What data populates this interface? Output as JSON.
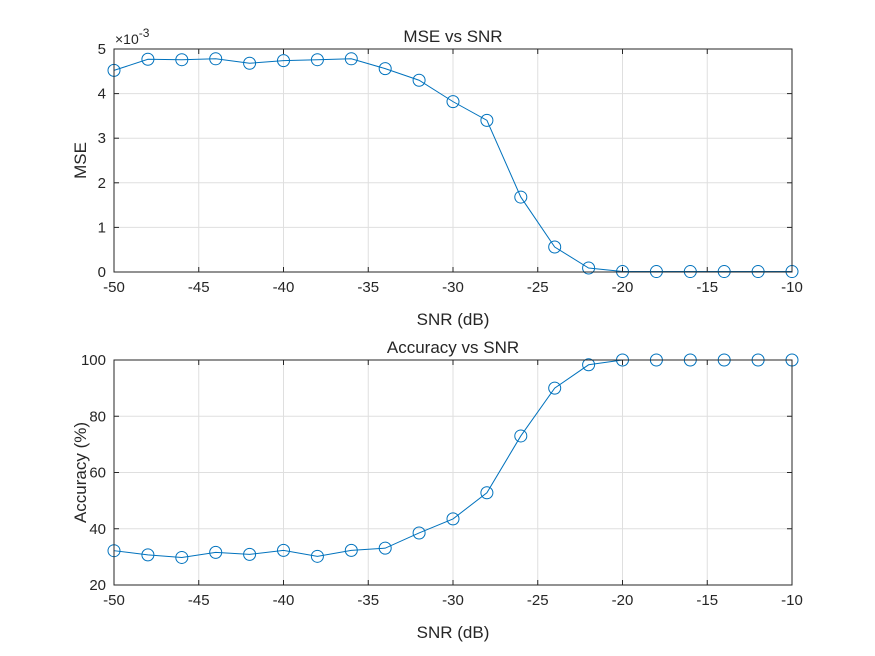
{
  "chart_data": [
    {
      "type": "line",
      "title": "MSE vs SNR",
      "xlabel": "SNR (dB)",
      "ylabel": "MSE",
      "exponent_label": "×10",
      "exponent_power": "-3",
      "xlim": [
        -50,
        -10
      ],
      "ylim": [
        0,
        5
      ],
      "xticks": [
        -50,
        -45,
        -40,
        -35,
        -30,
        -25,
        -20,
        -15,
        -10
      ],
      "yticks": [
        0,
        1,
        2,
        3,
        4,
        5
      ],
      "grid": true,
      "color": "#0072BD",
      "marker": "circle",
      "series": [
        {
          "x": [
            -50,
            -48,
            -46,
            -44,
            -42,
            -40,
            -38,
            -36,
            -34,
            -32,
            -30,
            -28,
            -26,
            -24,
            -22,
            -20,
            -18,
            -16,
            -14,
            -12,
            -10
          ],
          "values": [
            4.52,
            4.77,
            4.76,
            4.78,
            4.68,
            4.74,
            4.76,
            4.78,
            4.56,
            4.3,
            3.82,
            3.4,
            1.68,
            0.56,
            0.09,
            0.01,
            0.01,
            0.01,
            0.01,
            0.01,
            0.01
          ]
        }
      ]
    },
    {
      "type": "line",
      "title": "Accuracy vs SNR",
      "xlabel": "SNR (dB)",
      "ylabel": "Accuracy (%)",
      "xlim": [
        -50,
        -10
      ],
      "ylim": [
        20,
        100
      ],
      "xticks": [
        -50,
        -45,
        -40,
        -35,
        -30,
        -25,
        -20,
        -15,
        -10
      ],
      "yticks": [
        20,
        40,
        60,
        80,
        100
      ],
      "grid": true,
      "color": "#0072BD",
      "marker": "circle",
      "series": [
        {
          "x": [
            -50,
            -48,
            -46,
            -44,
            -42,
            -40,
            -38,
            -36,
            -34,
            -32,
            -30,
            -28,
            -26,
            -24,
            -22,
            -20,
            -18,
            -16,
            -14,
            -12,
            -10
          ],
          "values": [
            32.2,
            30.7,
            29.8,
            31.6,
            30.9,
            32.3,
            30.2,
            32.3,
            33.1,
            38.5,
            43.5,
            52.8,
            73.0,
            90.0,
            98.3,
            100,
            100,
            100,
            100,
            100,
            100
          ]
        }
      ]
    }
  ]
}
